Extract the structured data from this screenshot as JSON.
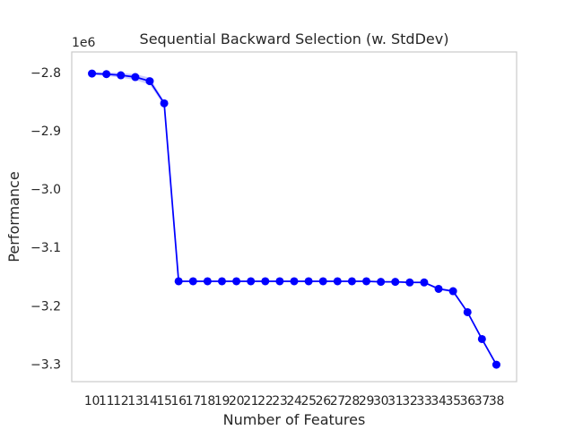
{
  "chart_data": {
    "type": "line",
    "title": "Sequential Backward Selection (w. StdDev)",
    "xlabel": "Number of Features",
    "ylabel": "Performance",
    "offset_text": "1e6",
    "x": [
      10,
      11,
      12,
      13,
      14,
      15,
      16,
      17,
      18,
      19,
      20,
      21,
      22,
      23,
      24,
      25,
      26,
      27,
      28,
      29,
      30,
      31,
      32,
      33,
      34,
      35,
      36,
      37,
      38
    ],
    "x_tick_labels": [
      "10",
      "11",
      "12",
      "13",
      "14",
      "15",
      "16",
      "17",
      "18",
      "19",
      "20",
      "21",
      "22",
      "23",
      "24",
      "25",
      "26",
      "27",
      "28",
      "29",
      "30",
      "31",
      "32",
      "33",
      "34",
      "35",
      "36",
      "37",
      "38"
    ],
    "series": [
      {
        "values": [
          -2.802,
          -2.803,
          -2.805,
          -2.808,
          -2.815,
          -2.853,
          -3.158,
          -3.158,
          -3.158,
          -3.158,
          -3.158,
          -3.158,
          -3.158,
          -3.158,
          -3.158,
          -3.158,
          -3.158,
          -3.158,
          -3.158,
          -3.158,
          -3.159,
          -3.159,
          -3.16,
          -3.16,
          -3.171,
          -3.175,
          -3.211,
          -3.257,
          -3.301
        ],
        "std": [
          0.002,
          0.003,
          0.004,
          0.005,
          0.006,
          0.004,
          0.001,
          0.001,
          0.001,
          0.001,
          0.001,
          0.001,
          0.001,
          0.001,
          0.001,
          0.001,
          0.001,
          0.001,
          0.001,
          0.001,
          0.001,
          0.001,
          0.001,
          0.001,
          0.002,
          0.002,
          0.002,
          0.002,
          0.002
        ],
        "color": "#0000ff"
      }
    ],
    "y_ticks": [
      -2.8,
      -2.9,
      -3.0,
      -3.1,
      -3.2,
      -3.3
    ],
    "y_tick_labels": [
      "−2.8",
      "−2.9",
      "−3.0",
      "−3.1",
      "−3.2",
      "−3.3"
    ],
    "xlim": [
      8.6,
      39.4
    ],
    "ylim": [
      -3.33,
      -2.765
    ],
    "grid": false,
    "band_color": "#0000ff"
  }
}
